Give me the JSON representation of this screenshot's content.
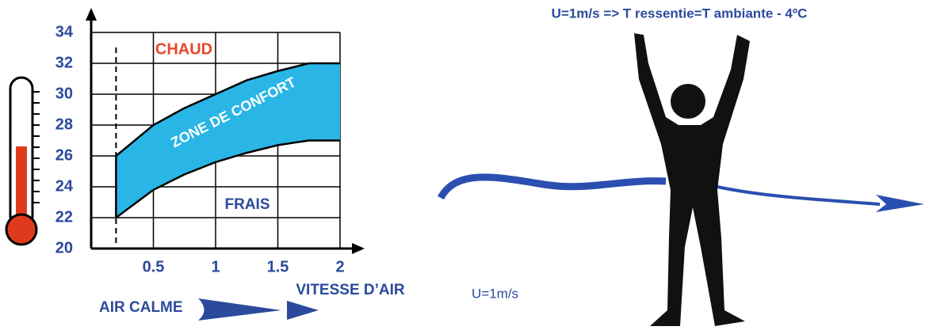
{
  "chart_data": {
    "type": "band",
    "title": "U=1m/s  =>  T ressentie=T ambiante - 4ºC",
    "speed_label": "U=1m/s",
    "x": [
      0.2,
      0.5,
      0.75,
      1,
      1.25,
      1.5,
      1.75,
      2
    ],
    "high": [
      26,
      28,
      29.1,
      30,
      30.9,
      31.5,
      32,
      32
    ],
    "low": [
      22,
      23.8,
      24.8,
      25.6,
      26.2,
      26.7,
      27,
      27
    ],
    "color": "#29b6e6",
    "calm_x": 0.2,
    "xlim": [
      0,
      2
    ],
    "ylim": [
      20,
      34
    ],
    "xticks": [
      0.5,
      1,
      1.5,
      2
    ],
    "yticks": [
      20,
      22,
      24,
      26,
      28,
      30,
      32,
      34
    ],
    "grid": true,
    "annotations": {
      "hot": "CHAUD",
      "zone": "ZONE DE CONFORT",
      "cool": "FRAIS",
      "calm": "AIR CALME",
      "speed": "VITESSE D’AIR"
    }
  }
}
